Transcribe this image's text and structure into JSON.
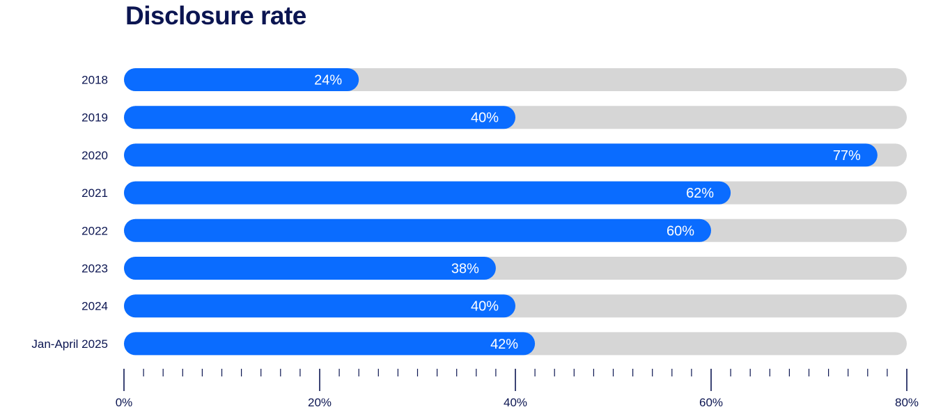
{
  "title": "Disclosure rate",
  "colors": {
    "bar": "#0a6cff",
    "track": "#d6d6d6",
    "text": "#0b1551",
    "value_text": "#ffffff"
  },
  "chart_data": {
    "type": "bar",
    "orientation": "horizontal",
    "title": "Disclosure rate",
    "xlabel": "",
    "ylabel": "",
    "categories": [
      "2018",
      "2019",
      "2020",
      "2021",
      "2022",
      "2023",
      "2024",
      "Jan-April 2025"
    ],
    "values": [
      24,
      40,
      77,
      62,
      60,
      38,
      40,
      42
    ],
    "value_labels": [
      "24%",
      "40%",
      "77%",
      "62%",
      "60%",
      "38%",
      "40%",
      "42%"
    ],
    "xlim": [
      0,
      80
    ],
    "x_ticks": [
      0,
      20,
      40,
      60,
      80
    ],
    "x_tick_labels": [
      "0%",
      "20%",
      "40%",
      "60%",
      "80%"
    ],
    "minor_tick_step": 2,
    "grid": false,
    "legend": "none"
  }
}
